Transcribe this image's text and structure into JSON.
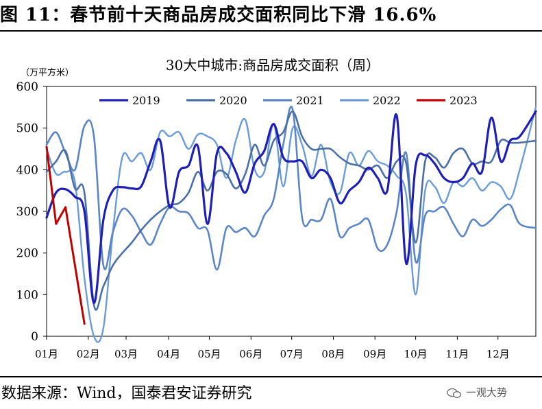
{
  "figure_title": "图 11：春节前十天商品房成交面积同比下滑 16.6%",
  "source_note": "数据来源：Wind，国泰君安证券研究",
  "watermark": "一观大势",
  "chart_data": {
    "type": "line",
    "title": "30大中城市:商品房成交面积（周）",
    "ylabel": "（万平方米）",
    "xlabel": "",
    "ylim": [
      0,
      600
    ],
    "yticks": [
      0,
      100,
      200,
      300,
      400,
      500,
      600
    ],
    "xlim": [
      1,
      52.7
    ],
    "xticks": [
      {
        "label": "01月",
        "week": 1
      },
      {
        "label": "02月",
        "week": 5.4
      },
      {
        "label": "03月",
        "week": 9.4
      },
      {
        "label": "04月",
        "week": 13.9
      },
      {
        "label": "05月",
        "week": 18.2
      },
      {
        "label": "06月",
        "week": 22.6
      },
      {
        "label": "07月",
        "week": 26.9
      },
      {
        "label": "08月",
        "week": 31.3
      },
      {
        "label": "09月",
        "week": 35.7
      },
      {
        "label": "10月",
        "week": 40.0
      },
      {
        "label": "11月",
        "week": 44.4
      },
      {
        "label": "12月",
        "week": 48.7
      }
    ],
    "grid": false,
    "legend": "top",
    "series": [
      {
        "name": "2019",
        "color": "#1f1fb4",
        "width": 3.2,
        "values": [
          [
            1,
            285
          ],
          [
            2,
            345
          ],
          [
            3,
            353
          ],
          [
            4,
            335
          ],
          [
            5,
            300
          ],
          [
            6,
            80
          ],
          [
            7,
            280
          ],
          [
            8,
            350
          ],
          [
            9,
            358
          ],
          [
            10,
            355
          ],
          [
            11,
            360
          ],
          [
            12,
            420
          ],
          [
            13,
            470
          ],
          [
            14,
            310
          ],
          [
            15,
            395
          ],
          [
            16,
            410
          ],
          [
            17,
            455
          ],
          [
            18,
            270
          ],
          [
            19,
            440
          ],
          [
            20,
            440
          ],
          [
            21,
            395
          ],
          [
            22,
            345
          ],
          [
            23,
            415
          ],
          [
            24,
            445
          ],
          [
            25,
            510
          ],
          [
            26,
            430
          ],
          [
            27,
            420
          ],
          [
            28,
            420
          ],
          [
            29,
            380
          ],
          [
            30,
            400
          ],
          [
            31,
            380
          ],
          [
            32,
            320
          ],
          [
            33,
            350
          ],
          [
            34,
            370
          ],
          [
            35,
            405
          ],
          [
            36,
            380
          ],
          [
            37,
            350
          ],
          [
            38,
            530
          ],
          [
            39,
            175
          ],
          [
            40,
            410
          ],
          [
            41,
            435
          ],
          [
            42,
            415
          ],
          [
            43,
            380
          ],
          [
            44,
            370
          ],
          [
            45,
            380
          ],
          [
            46,
            415
          ],
          [
            47,
            395
          ],
          [
            48,
            525
          ],
          [
            49,
            420
          ],
          [
            50,
            470
          ],
          [
            51,
            480
          ],
          [
            52.7,
            540
          ]
        ]
      },
      {
        "name": "2020",
        "color": "#4a6fa5",
        "width": 2.6,
        "values": [
          [
            1,
            395
          ],
          [
            2,
            420
          ],
          [
            3,
            445
          ],
          [
            4,
            355
          ],
          [
            5,
            345
          ],
          [
            6,
            75
          ],
          [
            7,
            120
          ],
          [
            8,
            170
          ],
          [
            9,
            200
          ],
          [
            10,
            225
          ],
          [
            11,
            255
          ],
          [
            12,
            280
          ],
          [
            13,
            300
          ],
          [
            14,
            315
          ],
          [
            15,
            320
          ],
          [
            16,
            345
          ],
          [
            17,
            395
          ],
          [
            18,
            350
          ],
          [
            19,
            395
          ],
          [
            20,
            390
          ],
          [
            21,
            355
          ],
          [
            22,
            390
          ],
          [
            23,
            460
          ],
          [
            24,
            410
          ],
          [
            25,
            470
          ],
          [
            26,
            490
          ],
          [
            27,
            540
          ],
          [
            28,
            480
          ],
          [
            29,
            450
          ],
          [
            30,
            450
          ],
          [
            31,
            450
          ],
          [
            32,
            430
          ],
          [
            33,
            415
          ],
          [
            34,
            410
          ],
          [
            35,
            400
          ],
          [
            36,
            410
          ],
          [
            37,
            380
          ],
          [
            38,
            420
          ],
          [
            39,
            415
          ],
          [
            40,
            225
          ],
          [
            41,
            420
          ],
          [
            42,
            430
          ],
          [
            43,
            405
          ],
          [
            44,
            440
          ],
          [
            45,
            450
          ],
          [
            46,
            415
          ],
          [
            47,
            420
          ],
          [
            48,
            420
          ],
          [
            49,
            470
          ],
          [
            50,
            465
          ],
          [
            51,
            465
          ],
          [
            52.7,
            470
          ]
        ]
      },
      {
        "name": "2021",
        "color": "#5b85c6",
        "width": 2.6,
        "values": [
          [
            1,
            460
          ],
          [
            2,
            490
          ],
          [
            3,
            440
          ],
          [
            4,
            400
          ],
          [
            5,
            505
          ],
          [
            6,
            480
          ],
          [
            7,
            170
          ],
          [
            8,
            250
          ],
          [
            9,
            305
          ],
          [
            10,
            290
          ],
          [
            11,
            250
          ],
          [
            12,
            220
          ],
          [
            13,
            270
          ],
          [
            14,
            310
          ],
          [
            15,
            300
          ],
          [
            16,
            295
          ],
          [
            17,
            260
          ],
          [
            18,
            255
          ],
          [
            19,
            160
          ],
          [
            20,
            260
          ],
          [
            21,
            250
          ],
          [
            22,
            260
          ],
          [
            23,
            240
          ],
          [
            24,
            290
          ],
          [
            25,
            330
          ],
          [
            26,
            460
          ],
          [
            27,
            545
          ],
          [
            28,
            285
          ],
          [
            29,
            280
          ],
          [
            30,
            280
          ],
          [
            31,
            330
          ],
          [
            32,
            240
          ],
          [
            33,
            260
          ],
          [
            34,
            270
          ],
          [
            35,
            280
          ],
          [
            36,
            210
          ],
          [
            37,
            220
          ],
          [
            38,
            300
          ],
          [
            39,
            440
          ],
          [
            40,
            180
          ],
          [
            41,
            290
          ],
          [
            42,
            300
          ],
          [
            43,
            310
          ],
          [
            44,
            270
          ],
          [
            45,
            240
          ],
          [
            46,
            280
          ],
          [
            47,
            265
          ],
          [
            48,
            280
          ],
          [
            49,
            305
          ],
          [
            50,
            315
          ],
          [
            51,
            270
          ],
          [
            52.7,
            260
          ]
        ]
      },
      {
        "name": "2022",
        "color": "#6a9bd8",
        "width": 2.4,
        "values": [
          [
            1,
            450
          ],
          [
            2,
            390
          ],
          [
            3,
            395
          ],
          [
            4,
            370
          ],
          [
            5,
            140
          ],
          [
            6,
            0
          ],
          [
            7,
            20
          ],
          [
            8,
            250
          ],
          [
            9,
            430
          ],
          [
            10,
            420
          ],
          [
            11,
            440
          ],
          [
            12,
            400
          ],
          [
            13,
            490
          ],
          [
            14,
            480
          ],
          [
            15,
            490
          ],
          [
            16,
            450
          ],
          [
            17,
            485
          ],
          [
            18,
            480
          ],
          [
            19,
            460
          ],
          [
            20,
            380
          ],
          [
            21,
            470
          ],
          [
            22,
            520
          ],
          [
            23,
            400
          ],
          [
            24,
            395
          ],
          [
            25,
            510
          ],
          [
            26,
            360
          ],
          [
            27,
            500
          ],
          [
            28,
            460
          ],
          [
            29,
            385
          ],
          [
            30,
            460
          ],
          [
            31,
            370
          ],
          [
            32,
            345
          ],
          [
            33,
            440
          ],
          [
            34,
            410
          ],
          [
            35,
            445
          ],
          [
            36,
            420
          ],
          [
            37,
            410
          ],
          [
            38,
            385
          ],
          [
            39,
            340
          ],
          [
            40,
            100
          ],
          [
            41,
            350
          ],
          [
            42,
            360
          ],
          [
            43,
            320
          ],
          [
            44,
            370
          ],
          [
            45,
            360
          ],
          [
            46,
            380
          ],
          [
            47,
            350
          ],
          [
            48,
            370
          ],
          [
            49,
            360
          ],
          [
            50,
            330
          ],
          [
            51,
            400
          ],
          [
            52.7,
            550
          ]
        ]
      },
      {
        "name": "2023",
        "color": "#c00000",
        "width": 3.0,
        "values": [
          [
            1,
            455
          ],
          [
            2,
            270
          ],
          [
            3,
            310
          ],
          [
            5,
            30
          ]
        ]
      }
    ]
  }
}
